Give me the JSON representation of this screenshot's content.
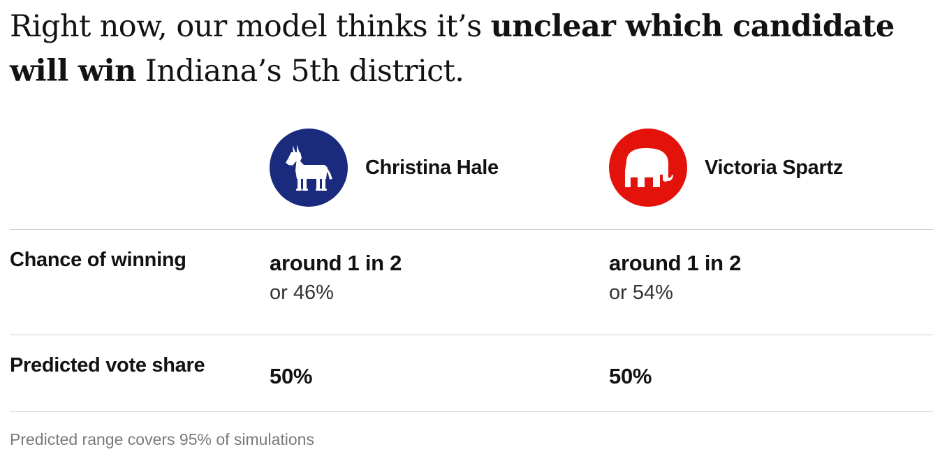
{
  "headline": {
    "prefix": "Right now, our model thinks it’s ",
    "emphasis": "unclear which candidate will win",
    "suffix": " Indiana’s 5th district."
  },
  "candidates": [
    {
      "party_icon": "democratic-donkey-icon",
      "icon_color": "#1a2a7c",
      "name": "Christina Hale",
      "chance_text": "around 1 in 2",
      "chance_percent": "or 46%",
      "vote_share": "50%"
    },
    {
      "party_icon": "republican-elephant-icon",
      "icon_color": "#e3120b",
      "name": "Victoria Spartz",
      "chance_text": "around 1 in 2",
      "chance_percent": "or 54%",
      "vote_share": "50%"
    }
  ],
  "rows": {
    "chance_label": "Chance of winning",
    "vote_label": "Predicted vote share"
  },
  "footnote": "Predicted range covers 95% of simulations"
}
